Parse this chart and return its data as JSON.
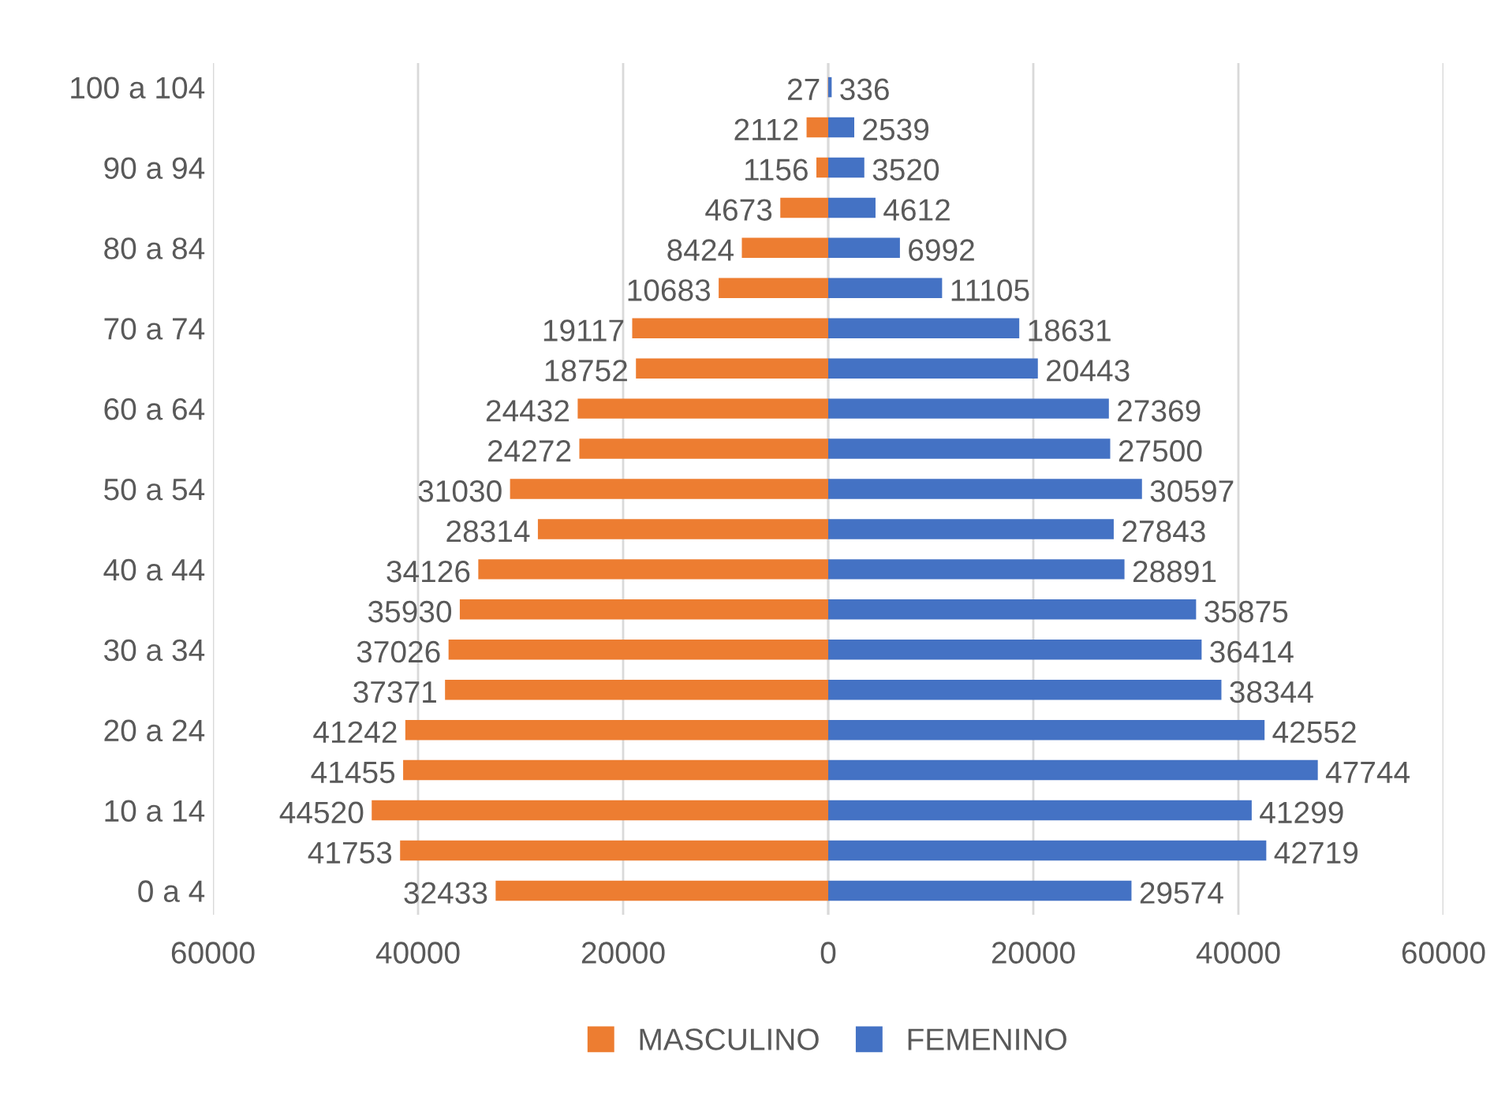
{
  "chart_data": {
    "type": "bar",
    "orientation": "horizontal",
    "data_labels": true,
    "categories": [
      "100 a 104",
      null,
      "90 a 94",
      null,
      "80 a 84",
      null,
      "70 a 74",
      null,
      "60 a 64",
      null,
      "50 a 54",
      null,
      "40 a 44",
      null,
      "30 a 34",
      null,
      "20 a 24",
      null,
      "10 a 14",
      null,
      "0 a 4"
    ],
    "series": [
      {
        "name": "MASCULINO",
        "color": "#ed7d31",
        "values": [
          27,
          2112,
          1156,
          4673,
          8424,
          10683,
          19117,
          18752,
          24432,
          24272,
          31030,
          28314,
          34126,
          35930,
          37026,
          37371,
          41242,
          41455,
          44520,
          41753,
          32433
        ],
        "base": [
          -27,
          -2112,
          -1156,
          -4673,
          -8424,
          -10683,
          -19117,
          -18752,
          -24432,
          -24272,
          -31030,
          -28314,
          -34126,
          -35930,
          -37026,
          -37371,
          -41242,
          -41455,
          -44520,
          -41753,
          -32433
        ]
      },
      {
        "name": "FEMENINO",
        "color": "#4472c4",
        "values": [
          336,
          2539,
          3520,
          4612,
          6992,
          11105,
          18631,
          20443,
          27369,
          27500,
          30597,
          27843,
          28891,
          35875,
          36414,
          38344,
          42552,
          47744,
          41299,
          42719,
          29574
        ]
      }
    ],
    "xlim": [
      -60000,
      60000
    ],
    "xticks": [
      {
        "value": -60000,
        "label": "60000"
      },
      {
        "value": -40000,
        "label": "40000"
      },
      {
        "value": -20000,
        "label": "20000"
      },
      0,
      20000,
      40000,
      60000
    ],
    "grid": "x",
    "legend": "bottom"
  }
}
